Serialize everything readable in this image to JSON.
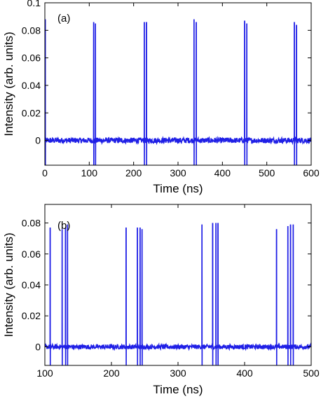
{
  "chart_data": [
    {
      "type": "line",
      "panel_label": "(a)",
      "xlabel": "Time (ns)",
      "ylabel": "Intensity (arb. units)",
      "xlim": [
        0,
        600
      ],
      "ylim": [
        -0.018,
        0.1
      ],
      "xticks": [
        0,
        100,
        200,
        300,
        400,
        500,
        600
      ],
      "yticks": [
        0,
        0.02,
        0.04,
        0.06,
        0.08,
        0.1
      ],
      "ytick_labels": [
        "0",
        "0.02",
        "0.04",
        "0.06",
        "0.08",
        "0.1"
      ],
      "grid": false,
      "color": "#1f1fe6",
      "baseline": 0,
      "noise_amplitude": 0.002,
      "pulses": [
        {
          "x": 1,
          "y": 0.088
        },
        {
          "x": 110,
          "y": 0.086
        },
        {
          "x": 114,
          "y": 0.085
        },
        {
          "x": 224,
          "y": 0.086
        },
        {
          "x": 229,
          "y": 0.086
        },
        {
          "x": 336,
          "y": 0.088
        },
        {
          "x": 341,
          "y": 0.086
        },
        {
          "x": 450,
          "y": 0.087
        },
        {
          "x": 455,
          "y": 0.085
        },
        {
          "x": 562,
          "y": 0.086
        },
        {
          "x": 567,
          "y": 0.084
        }
      ]
    },
    {
      "type": "line",
      "panel_label": "(b)",
      "xlabel": "Time (ns)",
      "ylabel": "Intensity (arb. units)",
      "xlim": [
        100,
        500
      ],
      "ylim": [
        -0.012,
        0.092
      ],
      "xticks": [
        100,
        200,
        300,
        400,
        500
      ],
      "yticks": [
        0,
        0.02,
        0.04,
        0.06,
        0.08
      ],
      "ytick_labels": [
        "0",
        "0.02",
        "0.04",
        "0.06",
        "0.08"
      ],
      "grid": false,
      "color": "#1f1fe6",
      "baseline": 0,
      "noise_amplitude": 0.0015,
      "pulses": [
        {
          "x": 108,
          "y": 0.077
        },
        {
          "x": 126,
          "y": 0.076
        },
        {
          "x": 131,
          "y": 0.077
        },
        {
          "x": 134,
          "y": 0.079
        },
        {
          "x": 222,
          "y": 0.077
        },
        {
          "x": 239,
          "y": 0.077
        },
        {
          "x": 243,
          "y": 0.077
        },
        {
          "x": 246,
          "y": 0.076
        },
        {
          "x": 336,
          "y": 0.079
        },
        {
          "x": 352,
          "y": 0.08
        },
        {
          "x": 357,
          "y": 0.08
        },
        {
          "x": 360,
          "y": 0.08
        },
        {
          "x": 448,
          "y": 0.076
        },
        {
          "x": 465,
          "y": 0.078
        },
        {
          "x": 469,
          "y": 0.079
        },
        {
          "x": 473,
          "y": 0.079
        }
      ]
    }
  ]
}
